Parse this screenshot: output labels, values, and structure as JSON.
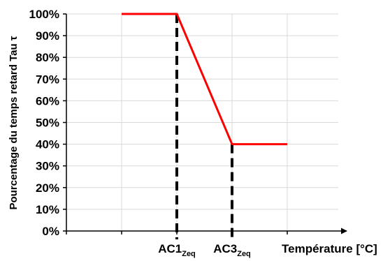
{
  "chart_data": {
    "type": "line",
    "title": "",
    "ylabel": "Pourcentage du temps retard Tau τ",
    "xlabel": "Température [°C]",
    "ylim": [
      0,
      100
    ],
    "xlim": [
      0,
      5
    ],
    "y_ticks": [
      "0%",
      "10%",
      "20%",
      "30%",
      "40%",
      "50%",
      "60%",
      "70%",
      "80%",
      "90%",
      "100%"
    ],
    "x_markers": [
      {
        "base": "AC1",
        "sub": "Zeq",
        "x": 2
      },
      {
        "base": "AC3",
        "sub": "Zeq",
        "x": 3
      }
    ],
    "grid": true,
    "legend": "none",
    "series": [
      {
        "x": [
          1,
          2,
          3,
          4
        ],
        "y": [
          100,
          100,
          40,
          40
        ]
      }
    ],
    "colors": {
      "line": "#ff0000",
      "grid": "#d9d9d9",
      "axis": "#000000",
      "marker_line": "#000000"
    }
  }
}
